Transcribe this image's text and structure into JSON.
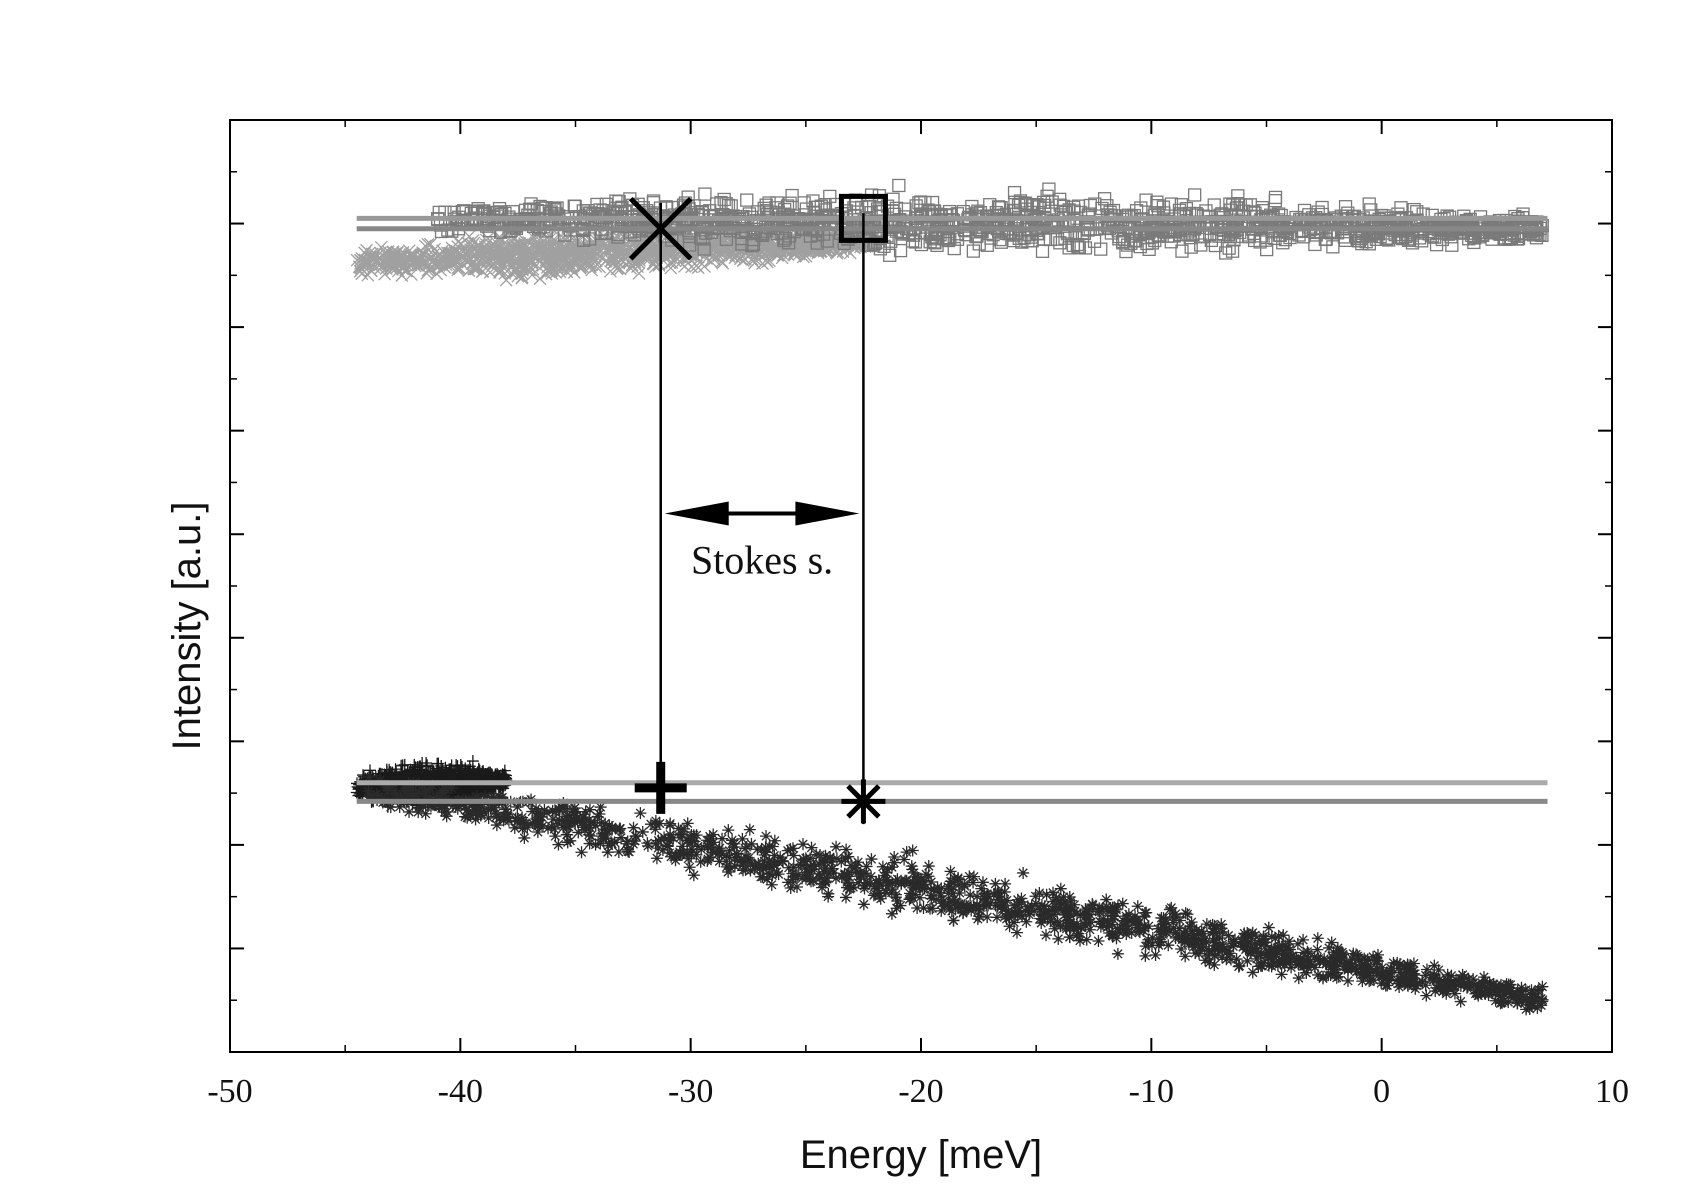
{
  "chart_data": {
    "type": "scatter",
    "title": "",
    "xlabel": "Energy [meV]",
    "ylabel": "Intensity [a.u.]",
    "xlim": [
      -50,
      10
    ],
    "ylim": [
      0,
      9
    ],
    "x_ticks": [
      -50,
      -40,
      -30,
      -20,
      -10,
      0,
      10
    ],
    "x_tick_labels": [
      "-50",
      "-40",
      "-30",
      "-20",
      "-10",
      "0",
      "10"
    ],
    "y_tick_labels_shown": false,
    "grid": false,
    "legend": "none",
    "annotation": {
      "text": "Stokes s.",
      "from_x": -31.3,
      "to_x": -22.5,
      "y": 5.2
    },
    "reference_lines": [
      {
        "x_start": -44.5,
        "x_end": 7.2,
        "y": 8.05,
        "color": "#999999"
      },
      {
        "x_start": -44.5,
        "x_end": 7.2,
        "y": 7.95,
        "color": "#888888"
      },
      {
        "x_start": -44.5,
        "x_end": 7.2,
        "y": 2.6,
        "color": "#aaaaaa"
      },
      {
        "x_start": -44.5,
        "x_end": 7.2,
        "y": 2.42,
        "color": "#888888"
      }
    ],
    "vertical_lines": [
      {
        "x": -31.3,
        "y_start": 2.4,
        "y_end": 8.2
      },
      {
        "x": -22.5,
        "y_start": 2.2,
        "y_end": 8.1
      }
    ],
    "series": [
      {
        "marker": "x",
        "color": "#a0a0a0",
        "x_range": [
          -44.5,
          -22
        ],
        "x_spread": [
          -0.12,
          -0.1
        ],
        "y_center": [
          7.62,
          7.85
        ],
        "y_spread": 0.28
      },
      {
        "marker": "square",
        "color": "#7a7a7a",
        "x_range": [
          -41,
          7
        ],
        "x_spread": [
          -0.2,
          -0.3
        ],
        "y_center": [
          8.05,
          7.95
        ],
        "y_spread": 0.35
      },
      {
        "marker": "plus",
        "color": "#1a1a1a",
        "x_range": [
          -44.5,
          -38
        ],
        "x_spread": [
          -0.15,
          0.0
        ],
        "y_center": [
          2.55,
          2.62
        ],
        "y_spread": 0.25
      },
      {
        "marker": "asterisk",
        "color": "#2a2a2a",
        "x_range": [
          -44,
          7
        ],
        "x_spread": [
          -0.15,
          0.2
        ],
        "y_center": [
          2.55,
          0.5
        ],
        "y_spread": 0.35
      }
    ],
    "highlight_points": [
      {
        "marker": "x",
        "x": -31.3,
        "y": 7.95,
        "size": 30
      },
      {
        "marker": "square",
        "x": -22.5,
        "y": 8.05,
        "size": 22
      },
      {
        "marker": "plus",
        "x": -31.3,
        "y": 2.55,
        "size": 26
      },
      {
        "marker": "asterisk",
        "x": -22.5,
        "y": 2.42,
        "size": 22
      }
    ]
  }
}
